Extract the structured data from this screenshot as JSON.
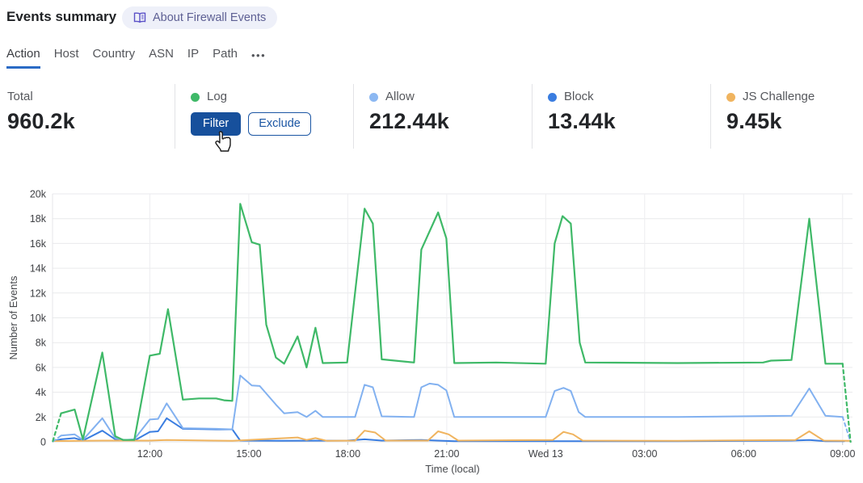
{
  "header": {
    "title": "Events summary",
    "about_badge": "About Firewall Events"
  },
  "tabs": {
    "items": [
      {
        "label": "Action",
        "active": true
      },
      {
        "label": "Host",
        "active": false
      },
      {
        "label": "Country",
        "active": false
      },
      {
        "label": "ASN",
        "active": false
      },
      {
        "label": "IP",
        "active": false
      },
      {
        "label": "Path",
        "active": false
      }
    ],
    "more_label": "•••"
  },
  "stats": {
    "columns": [
      {
        "label": "Total",
        "value": "960.2k",
        "dot_color": null
      },
      {
        "label": "Log",
        "value": null,
        "dot_color": "#3fb968",
        "buttons": {
          "filter": "Filter",
          "exclude": "Exclude"
        }
      },
      {
        "label": "Allow",
        "value": "212.44k",
        "dot_color": "#8cb8f2"
      },
      {
        "label": "Block",
        "value": "13.44k",
        "dot_color": "#3a7de0"
      },
      {
        "label": "JS Challenge",
        "value": "9.45k",
        "dot_color": "#f0b45f"
      }
    ]
  },
  "chart_data": {
    "type": "line",
    "xlabel": "Time (local)",
    "ylabel": "Number of Events",
    "x_domain": [
      9.05,
      33.3
    ],
    "x_unit_note": "hours of day; 24-33 are the following day (Wed 13)",
    "y_max": 20,
    "ylim": [
      0,
      20000
    ],
    "grid": true,
    "legend_position": "top-stat-row",
    "x_ticks": [
      {
        "t": 12,
        "label": "12:00"
      },
      {
        "t": 15,
        "label": "15:00"
      },
      {
        "t": 18,
        "label": "18:00"
      },
      {
        "t": 21,
        "label": "21:00"
      },
      {
        "t": 24,
        "label": "Wed 13"
      },
      {
        "t": 27,
        "label": "03:00"
      },
      {
        "t": 30,
        "label": "06:00"
      },
      {
        "t": 33,
        "label": "09:00"
      }
    ],
    "y_ticks": [
      {
        "v": 0,
        "label": "0"
      },
      {
        "v": 2,
        "label": "2k"
      },
      {
        "v": 4,
        "label": "4k"
      },
      {
        "v": 6,
        "label": "6k"
      },
      {
        "v": 8,
        "label": "8k"
      },
      {
        "v": 10,
        "label": "10k"
      },
      {
        "v": 12,
        "label": "12k"
      },
      {
        "v": 14,
        "label": "14k"
      },
      {
        "v": 16,
        "label": "16k"
      },
      {
        "v": 18,
        "label": "18k"
      },
      {
        "v": 20,
        "label": "20k"
      }
    ],
    "value_unit": "thousands of events",
    "series": [
      {
        "name": "Block",
        "color": "#3a7de0",
        "width": 2,
        "head_dashed": false,
        "tail_dashed": false,
        "points": [
          [
            9.06,
            0.05
          ],
          [
            9.31,
            0.2
          ],
          [
            9.72,
            0.3
          ],
          [
            9.97,
            0.1
          ],
          [
            10.56,
            0.9
          ],
          [
            10.95,
            0.2
          ],
          [
            11.53,
            0.1
          ],
          [
            12.0,
            0.8
          ],
          [
            12.25,
            0.85
          ],
          [
            12.51,
            1.9
          ],
          [
            13.0,
            1.05
          ],
          [
            14.01,
            1.0
          ],
          [
            14.5,
            1.0
          ],
          [
            14.74,
            0.1
          ],
          [
            16.0,
            0.08
          ],
          [
            17.98,
            0.1
          ],
          [
            18.51,
            0.2
          ],
          [
            19.03,
            0.1
          ],
          [
            20.23,
            0.15
          ],
          [
            21.23,
            0.05
          ],
          [
            24.0,
            0.05
          ],
          [
            28.0,
            0.05
          ],
          [
            31.45,
            0.1
          ],
          [
            31.99,
            0.15
          ],
          [
            32.48,
            0.05
          ],
          [
            33.05,
            0.05
          ]
        ]
      },
      {
        "name": "JS Challenge",
        "color": "#f0b45f",
        "width": 2,
        "head_dashed": false,
        "tail_dashed": false,
        "points": [
          [
            9.06,
            0.06
          ],
          [
            10.56,
            0.1
          ],
          [
            12.0,
            0.1
          ],
          [
            12.51,
            0.15
          ],
          [
            14.5,
            0.08
          ],
          [
            16.48,
            0.35
          ],
          [
            16.75,
            0.15
          ],
          [
            17.02,
            0.3
          ],
          [
            17.37,
            0.08
          ],
          [
            18.22,
            0.1
          ],
          [
            18.51,
            0.9
          ],
          [
            18.83,
            0.75
          ],
          [
            19.15,
            0.1
          ],
          [
            20.43,
            0.1
          ],
          [
            20.74,
            0.85
          ],
          [
            21.06,
            0.6
          ],
          [
            21.35,
            0.1
          ],
          [
            24.22,
            0.15
          ],
          [
            24.54,
            0.8
          ],
          [
            24.83,
            0.6
          ],
          [
            25.12,
            0.1
          ],
          [
            28.0,
            0.08
          ],
          [
            31.57,
            0.15
          ],
          [
            31.99,
            0.85
          ],
          [
            32.43,
            0.1
          ],
          [
            33.24,
            0.08
          ]
        ]
      },
      {
        "name": "Allow",
        "color": "#82b1f0",
        "width": 2,
        "head_dashed": true,
        "tail_dashed": true,
        "points": [
          [
            9.06,
            0.02
          ],
          [
            9.31,
            0.5
          ],
          [
            9.72,
            0.6
          ],
          [
            9.97,
            0.15
          ],
          [
            10.56,
            1.9
          ],
          [
            10.95,
            0.3
          ],
          [
            11.24,
            0.15
          ],
          [
            11.53,
            0.2
          ],
          [
            12.0,
            1.8
          ],
          [
            12.25,
            1.85
          ],
          [
            12.51,
            3.1
          ],
          [
            13.0,
            1.1
          ],
          [
            14.01,
            1.05
          ],
          [
            14.5,
            1.0
          ],
          [
            14.74,
            5.35
          ],
          [
            15.09,
            4.55
          ],
          [
            15.33,
            4.5
          ],
          [
            15.82,
            3.0
          ],
          [
            16.07,
            2.3
          ],
          [
            16.48,
            2.4
          ],
          [
            16.75,
            2.0
          ],
          [
            17.02,
            2.5
          ],
          [
            17.24,
            2.0
          ],
          [
            18.22,
            2.0
          ],
          [
            18.51,
            4.6
          ],
          [
            18.76,
            4.4
          ],
          [
            19.03,
            2.05
          ],
          [
            20.01,
            2.0
          ],
          [
            20.23,
            4.4
          ],
          [
            20.48,
            4.7
          ],
          [
            20.74,
            4.6
          ],
          [
            20.99,
            4.15
          ],
          [
            21.23,
            2.0
          ],
          [
            24.0,
            2.0
          ],
          [
            24.27,
            4.1
          ],
          [
            24.54,
            4.35
          ],
          [
            24.76,
            4.1
          ],
          [
            25.0,
            2.4
          ],
          [
            25.2,
            2.0
          ],
          [
            28.0,
            2.0
          ],
          [
            31.45,
            2.1
          ],
          [
            31.99,
            4.3
          ],
          [
            32.48,
            2.1
          ],
          [
            33.0,
            2.0
          ],
          [
            33.24,
            0
          ]
        ]
      },
      {
        "name": "Log",
        "color": "#3fb968",
        "width": 2.2,
        "head_dashed": true,
        "tail_dashed": true,
        "points": [
          [
            9.06,
            0.05
          ],
          [
            9.31,
            2.3
          ],
          [
            9.72,
            2.6
          ],
          [
            9.97,
            0.2
          ],
          [
            10.56,
            7.2
          ],
          [
            10.95,
            0.45
          ],
          [
            11.19,
            0.15
          ],
          [
            11.53,
            0.15
          ],
          [
            12.0,
            6.95
          ],
          [
            12.3,
            7.1
          ],
          [
            12.55,
            10.7
          ],
          [
            13.0,
            3.4
          ],
          [
            13.49,
            3.5
          ],
          [
            14.01,
            3.5
          ],
          [
            14.25,
            3.35
          ],
          [
            14.5,
            3.3
          ],
          [
            14.74,
            19.2
          ],
          [
            15.09,
            16.1
          ],
          [
            15.33,
            15.9
          ],
          [
            15.53,
            9.45
          ],
          [
            15.82,
            6.8
          ],
          [
            16.07,
            6.3
          ],
          [
            16.48,
            8.5
          ],
          [
            16.75,
            6.0
          ],
          [
            17.02,
            9.2
          ],
          [
            17.24,
            6.35
          ],
          [
            17.98,
            6.4
          ],
          [
            18.51,
            18.8
          ],
          [
            18.76,
            17.6
          ],
          [
            19.03,
            6.65
          ],
          [
            20.01,
            6.4
          ],
          [
            20.23,
            15.5
          ],
          [
            20.74,
            18.5
          ],
          [
            20.99,
            16.4
          ],
          [
            21.23,
            6.35
          ],
          [
            22.5,
            6.4
          ],
          [
            24.0,
            6.3
          ],
          [
            24.27,
            16.0
          ],
          [
            24.51,
            18.2
          ],
          [
            24.76,
            17.6
          ],
          [
            25.03,
            8.0
          ],
          [
            25.2,
            6.4
          ],
          [
            28.0,
            6.35
          ],
          [
            30.59,
            6.4
          ],
          [
            30.83,
            6.55
          ],
          [
            31.45,
            6.6
          ],
          [
            31.99,
            18.0
          ],
          [
            32.48,
            6.3
          ],
          [
            33.0,
            6.3
          ],
          [
            33.24,
            0
          ]
        ]
      }
    ]
  },
  "colors": {
    "accent_blue": "#17509c",
    "tab_underline": "#2a6bc5",
    "badge_bg": "#eef0f9",
    "badge_text": "#5e6094",
    "grid_line": "#e9eaec",
    "axis_text": "#3f4145"
  }
}
